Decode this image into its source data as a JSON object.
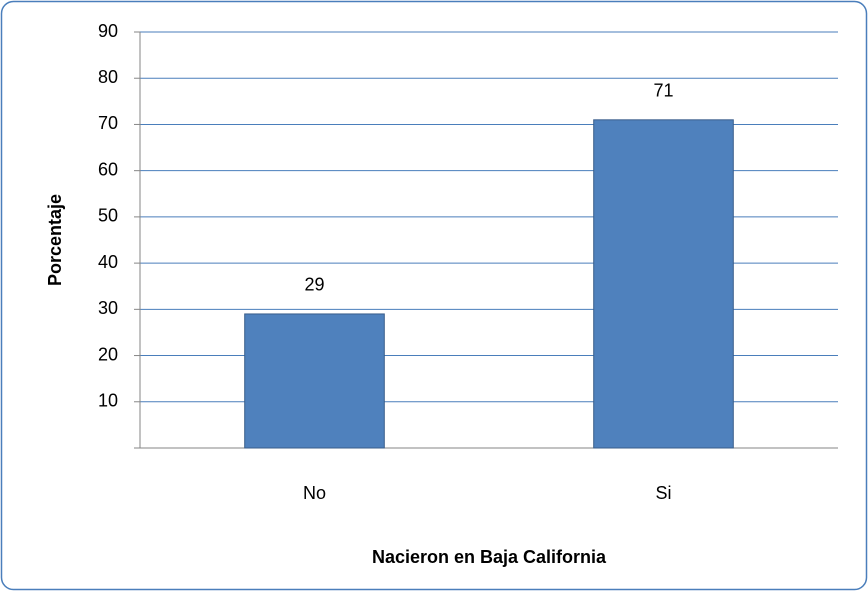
{
  "chart_data": {
    "type": "bar",
    "categories": [
      "No",
      "Si"
    ],
    "values": [
      29,
      71
    ],
    "color": "#4f81bd",
    "xlabel": "Nacieron en Baja California",
    "ylabel": "Porcentaje",
    "ylim": [
      0,
      90
    ],
    "yticks": [
      10,
      20,
      30,
      40,
      50,
      60,
      70,
      80,
      90
    ],
    "grid": true
  }
}
